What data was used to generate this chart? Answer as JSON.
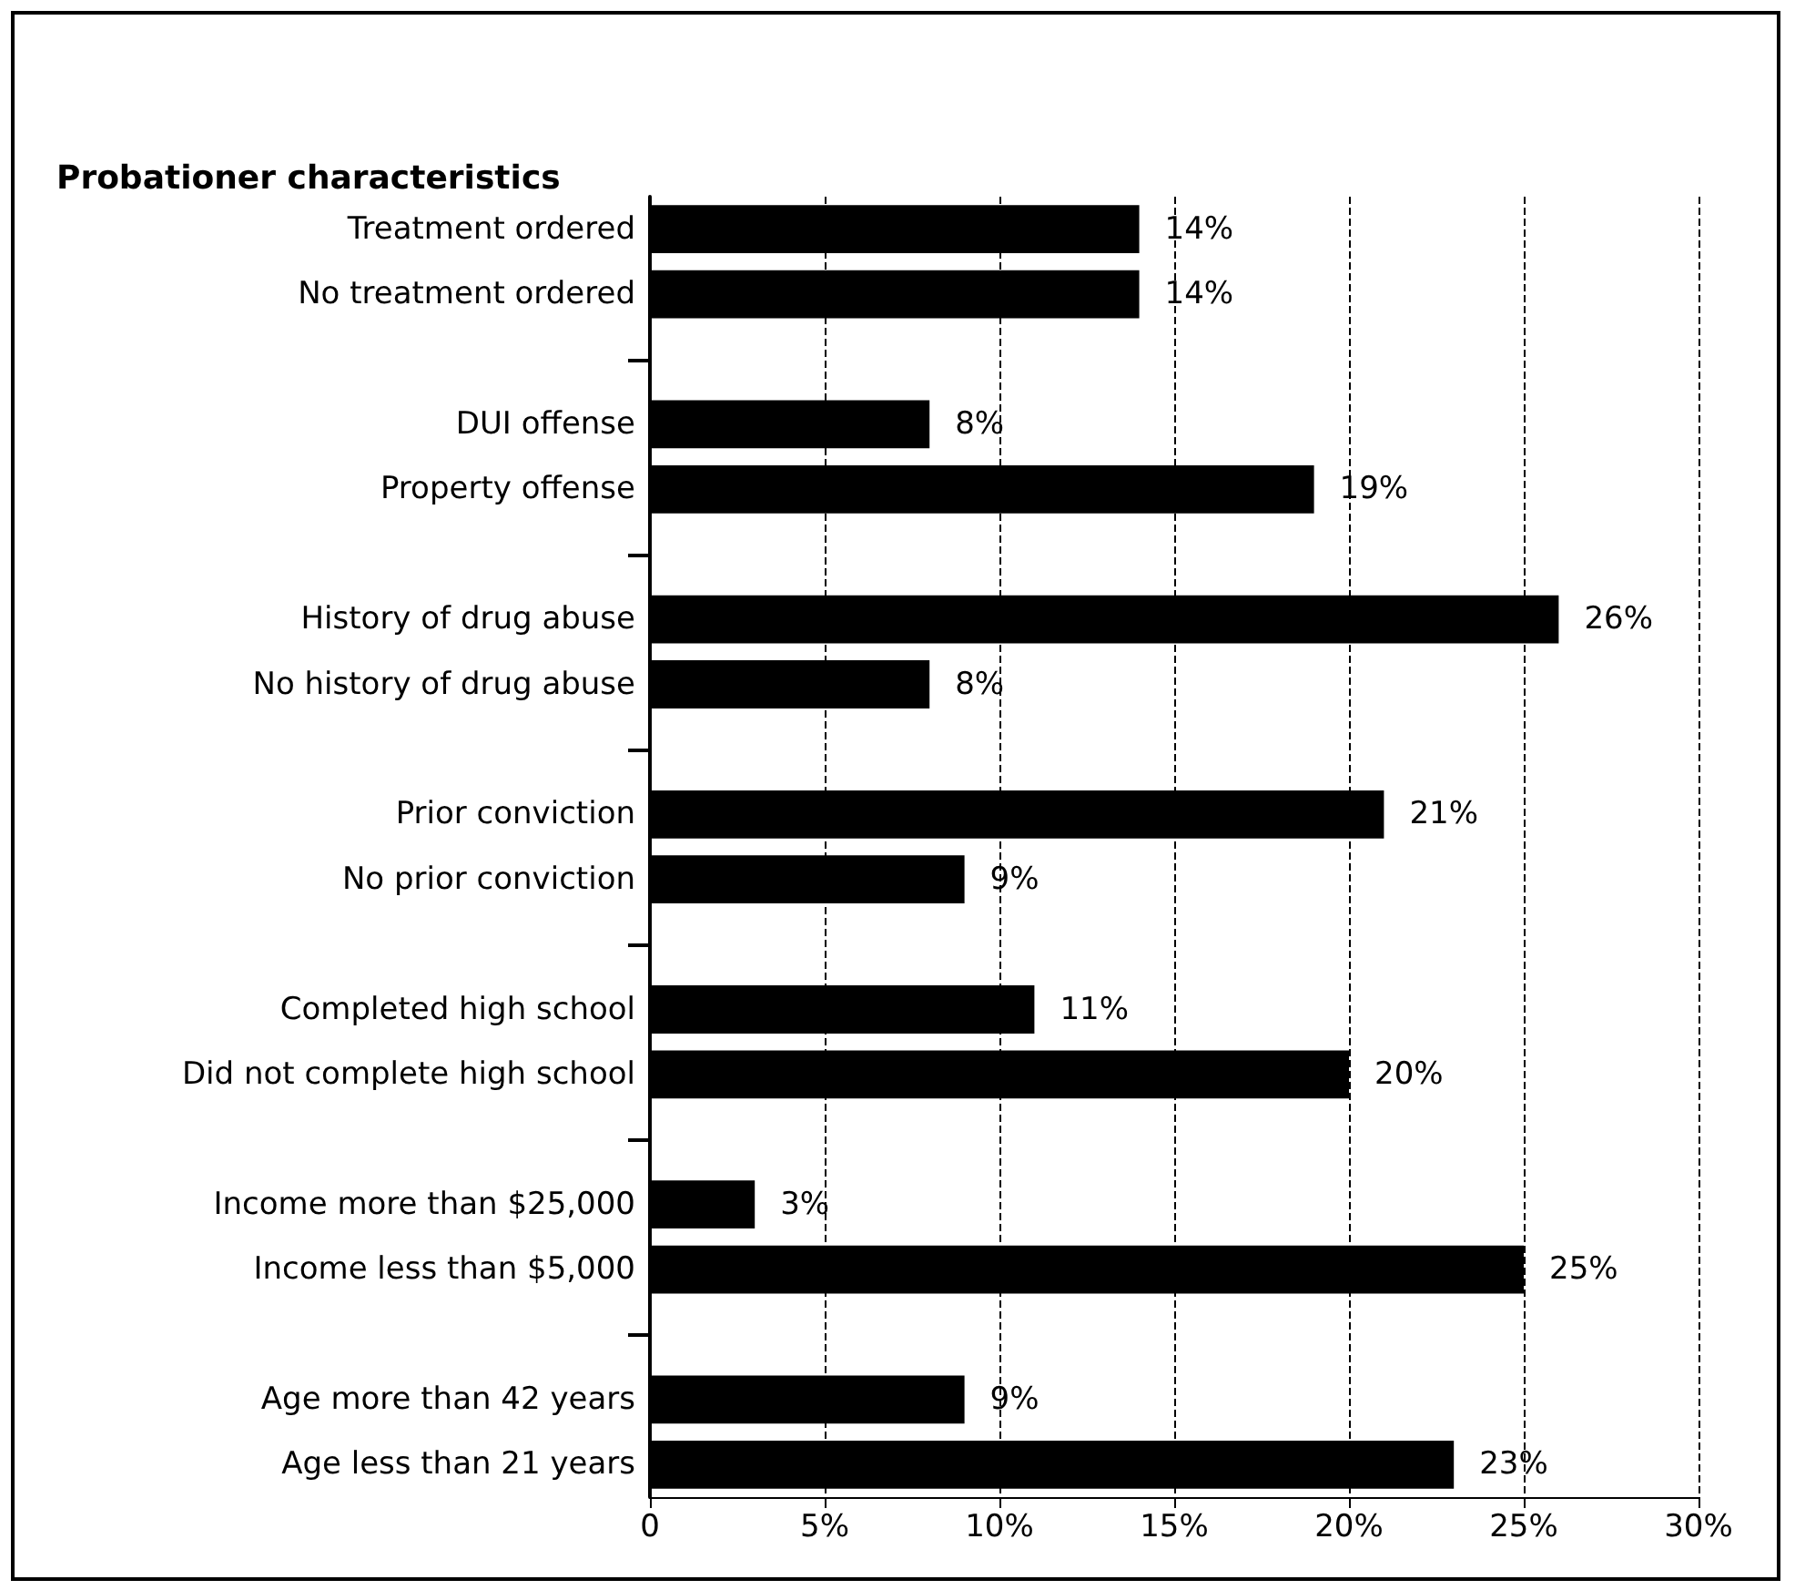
{
  "chart_data": {
    "type": "bar",
    "orientation": "horizontal",
    "title": "Probationer characteristics",
    "categories": [
      "Treatment ordered",
      "No treatment ordered",
      null,
      "DUI offense",
      "Property offense",
      null,
      "History of drug abuse",
      "No history of drug abuse",
      null,
      "Prior conviction",
      "No prior conviction",
      null,
      "Completed high school",
      "Did not complete high school",
      null,
      "Income more than $25,000",
      "Income less than $5,000",
      null,
      "Age more than 42 years",
      "Age less than 21 years"
    ],
    "series": [
      {
        "color": "#000000",
        "values": [
          14,
          14,
          null,
          8,
          19,
          null,
          26,
          8,
          null,
          21,
          9,
          null,
          11,
          20,
          null,
          3,
          25,
          null,
          9,
          23
        ],
        "value_labels": [
          "14%",
          "14%",
          null,
          "8%",
          "19%",
          null,
          "26%",
          "8%",
          null,
          "21%",
          "9%",
          null,
          "11%",
          "20%",
          null,
          "3%",
          "25%",
          null,
          "9%",
          "23%"
        ]
      }
    ],
    "xlim": [
      0,
      30
    ],
    "xticks": [
      0,
      {
        "value": 5,
        "label": "5%"
      },
      {
        "value": 10,
        "label": "10%"
      },
      {
        "value": 15,
        "label": "15%"
      },
      {
        "value": 20,
        "label": "20%"
      },
      {
        "value": 25,
        "label": "25%"
      },
      {
        "value": 30,
        "label": "30%"
      }
    ],
    "grid": "x"
  }
}
